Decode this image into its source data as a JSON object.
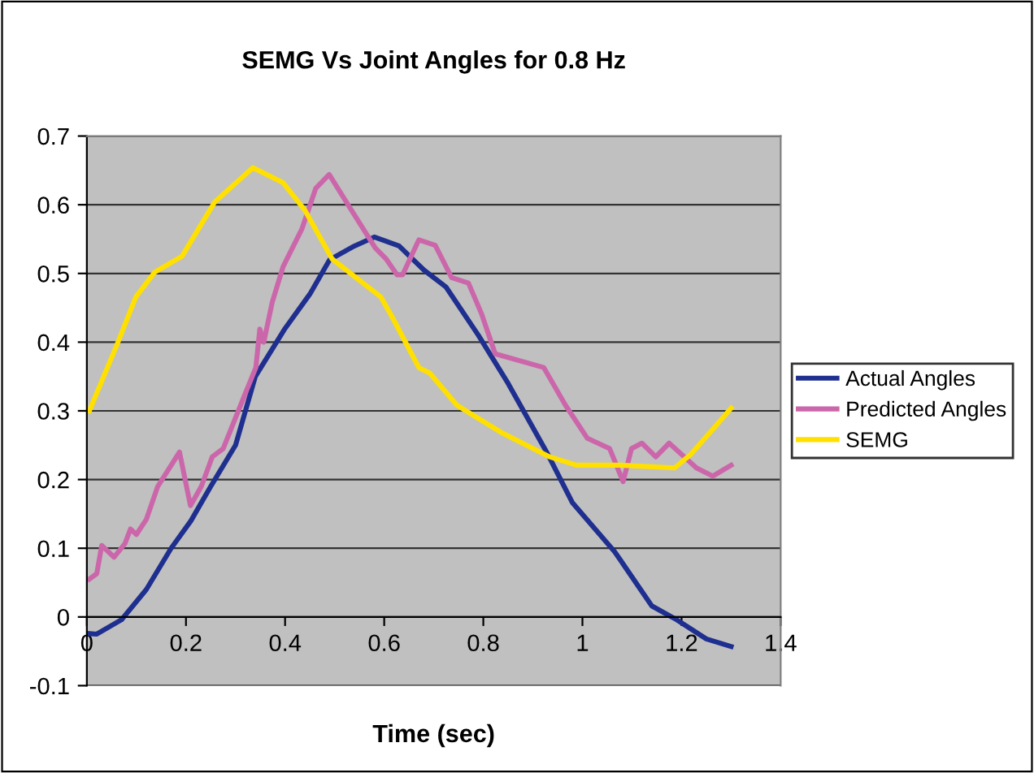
{
  "chart_data": {
    "type": "line",
    "title": "SEMG Vs Joint Angles for 0.8 Hz",
    "xlabel": "Time (sec)",
    "xlim": [
      0,
      1.4
    ],
    "xticks": [
      0,
      0.2,
      0.4,
      0.6,
      0.8,
      1,
      1.2,
      1.4
    ],
    "ylim": [
      -0.1,
      0.7
    ],
    "yticks": [
      -0.1,
      0,
      0.1,
      0.2,
      0.3,
      0.4,
      0.5,
      0.6,
      0.7
    ],
    "grid": "y",
    "legend": "right",
    "marker": "none",
    "line_style": "solid",
    "series": [
      {
        "name": "Actual Angles",
        "color": "#1f2f8f",
        "x": [
          0,
          0.02,
          0.07,
          0.12,
          0.17,
          0.21,
          0.25,
          0.3,
          0.34,
          0.4,
          0.45,
          0.49,
          0.54,
          0.58,
          0.63,
          0.68,
          0.725,
          0.79,
          0.85,
          0.93,
          0.98,
          1.065,
          1.14,
          1.19,
          1.25,
          1.3
        ],
        "values": [
          -0.024,
          -0.025,
          -0.004,
          0.04,
          0.1,
          0.14,
          0.19,
          0.25,
          0.35,
          0.42,
          0.47,
          0.52,
          0.54,
          0.553,
          0.54,
          0.505,
          0.48,
          0.41,
          0.34,
          0.237,
          0.166,
          0.095,
          0.016,
          -0.004,
          -0.032,
          -0.043
        ]
      },
      {
        "name": "Predicted Angles",
        "color": "#cc66aa",
        "x": [
          0.005,
          0.02,
          0.03,
          0.055,
          0.077,
          0.088,
          0.1,
          0.12,
          0.143,
          0.187,
          0.209,
          0.231,
          0.253,
          0.275,
          0.319,
          0.341,
          0.349,
          0.357,
          0.374,
          0.396,
          0.434,
          0.462,
          0.489,
          0.527,
          0.582,
          0.604,
          0.626,
          0.637,
          0.67,
          0.703,
          0.736,
          0.77,
          0.796,
          0.824,
          0.922,
          0.966,
          1.01,
          1.055,
          1.082,
          1.099,
          1.12,
          1.148,
          1.175,
          1.23,
          1.263,
          1.3
        ],
        "values": [
          0.055,
          0.063,
          0.104,
          0.087,
          0.107,
          0.128,
          0.12,
          0.142,
          0.19,
          0.24,
          0.162,
          0.19,
          0.233,
          0.245,
          0.324,
          0.363,
          0.419,
          0.4,
          0.458,
          0.51,
          0.565,
          0.624,
          0.644,
          0.6,
          0.537,
          0.521,
          0.498,
          0.498,
          0.549,
          0.541,
          0.494,
          0.486,
          0.442,
          0.383,
          0.363,
          0.308,
          0.26,
          0.245,
          0.197,
          0.245,
          0.253,
          0.233,
          0.253,
          0.217,
          0.205,
          0.221
        ]
      },
      {
        "name": "SEMG",
        "color": "#ffe000",
        "x": [
          0.005,
          0.06,
          0.099,
          0.137,
          0.192,
          0.258,
          0.335,
          0.396,
          0.44,
          0.495,
          0.593,
          0.615,
          0.67,
          0.692,
          0.747,
          0.835,
          0.934,
          0.988,
          1.076,
          1.186,
          1.219,
          1.263,
          1.3
        ],
        "values": [
          0.3,
          0.395,
          0.466,
          0.502,
          0.525,
          0.604,
          0.654,
          0.632,
          0.592,
          0.521,
          0.466,
          0.438,
          0.363,
          0.355,
          0.308,
          0.269,
          0.233,
          0.221,
          0.221,
          0.217,
          0.237,
          0.273,
          0.304
        ]
      }
    ]
  }
}
